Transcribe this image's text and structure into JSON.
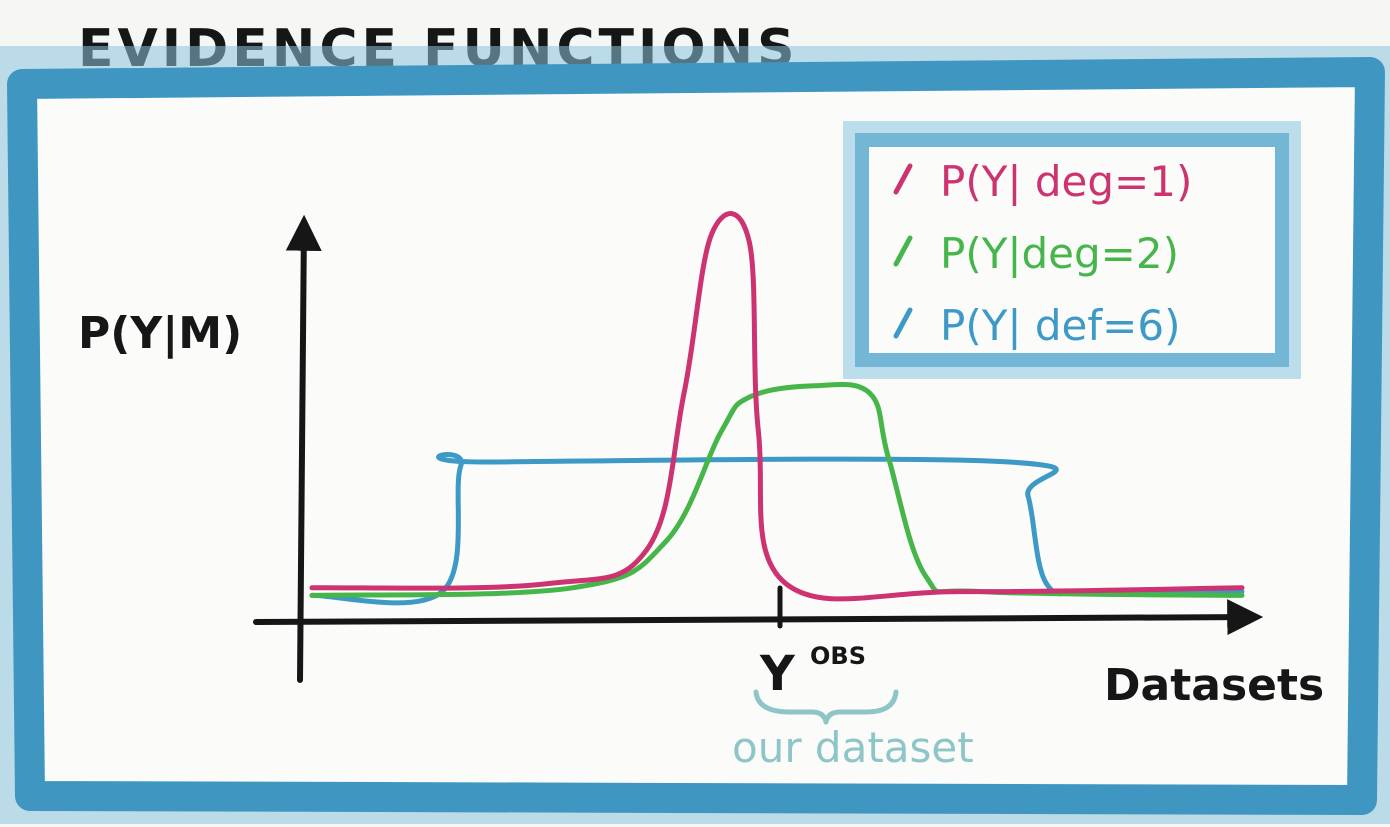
{
  "title": "EVIDENCE FUNCTIONS",
  "colors": {
    "frame": "#3f97c1",
    "frame_light": "#7dbcd8",
    "ink": "#161616",
    "pink": "#cc3370",
    "green": "#46b54a",
    "blue": "#3d99c6",
    "teal": "#8ec6c8"
  },
  "chart_data": {
    "type": "line",
    "ylabel": "P(Y|M)",
    "xlabel": "Datasets",
    "x_marker": {
      "label": "Y",
      "superscript": "OBS",
      "brace_note": "our dataset"
    },
    "legend_placement": "top-right",
    "series": [
      {
        "name": "P(Y| deg=1)",
        "color": "#cc3370",
        "points": [
          [
            0,
            0.04
          ],
          [
            25,
            0.05
          ],
          [
            36,
            0.14
          ],
          [
            40,
            0.55
          ],
          [
            43,
            0.97
          ],
          [
            47,
            0.95
          ],
          [
            48,
            0.45
          ],
          [
            51,
            0.05
          ],
          [
            70,
            0.03
          ],
          [
            100,
            0.04
          ]
        ]
      },
      {
        "name": "P(Y|deg=2)",
        "color": "#46b54a",
        "points": [
          [
            0,
            0.02
          ],
          [
            28,
            0.04
          ],
          [
            38,
            0.16
          ],
          [
            44,
            0.45
          ],
          [
            47,
            0.54
          ],
          [
            54,
            0.57
          ],
          [
            60,
            0.55
          ],
          [
            62,
            0.38
          ],
          [
            66,
            0.07
          ],
          [
            72,
            0.03
          ],
          [
            100,
            0.02
          ]
        ]
      },
      {
        "name": "P(Y| def=6)",
        "color": "#3d99c6",
        "points": [
          [
            0,
            0.02
          ],
          [
            14,
            0.03
          ],
          [
            16,
            0.36
          ],
          [
            19,
            0.37
          ],
          [
            75,
            0.37
          ],
          [
            77,
            0.28
          ],
          [
            79,
            0.05
          ],
          [
            84,
            0.03
          ],
          [
            100,
            0.03
          ]
        ]
      }
    ]
  }
}
